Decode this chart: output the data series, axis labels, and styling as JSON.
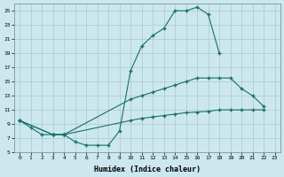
{
  "xlabel": "Humidex (Indice chaleur)",
  "bg_color": "#cce8ee",
  "grid_color": "#aac8cc",
  "line_color": "#1a6e6a",
  "xlim": [
    -0.5,
    23.5
  ],
  "ylim": [
    5,
    26
  ],
  "yticks": [
    5,
    7,
    9,
    11,
    13,
    15,
    17,
    19,
    21,
    23,
    25
  ],
  "xticks": [
    0,
    1,
    2,
    3,
    4,
    5,
    6,
    7,
    8,
    9,
    10,
    11,
    12,
    13,
    14,
    15,
    16,
    17,
    18,
    19,
    20,
    21,
    22,
    23
  ],
  "line1_x": [
    0,
    1,
    2,
    3,
    4,
    5,
    6,
    7,
    8,
    9,
    10,
    11,
    12,
    13,
    14,
    15,
    16,
    17,
    18
  ],
  "line1_y": [
    9.5,
    8.5,
    7.5,
    7.5,
    7.5,
    6.5,
    6.0,
    6.0,
    6.0,
    8.0,
    16.5,
    20.0,
    21.5,
    22.5,
    25.0,
    25.0,
    25.5,
    24.5,
    19.0
  ],
  "line2_x": [
    0,
    3,
    4,
    10,
    11,
    12,
    13,
    14,
    15,
    16,
    17,
    18,
    19,
    20,
    21,
    22
  ],
  "line2_y": [
    9.5,
    7.5,
    7.5,
    12.5,
    13.0,
    13.5,
    14.0,
    14.5,
    15.0,
    15.5,
    15.5,
    15.5,
    15.5,
    14.0,
    13.0,
    11.5
  ],
  "line3_x": [
    0,
    3,
    4,
    10,
    11,
    12,
    13,
    14,
    15,
    16,
    17,
    18,
    19,
    20,
    21,
    22
  ],
  "line3_y": [
    9.5,
    7.5,
    7.5,
    9.5,
    9.8,
    10.0,
    10.2,
    10.4,
    10.6,
    10.7,
    10.8,
    11.0,
    11.0,
    11.0,
    11.0,
    11.0
  ]
}
